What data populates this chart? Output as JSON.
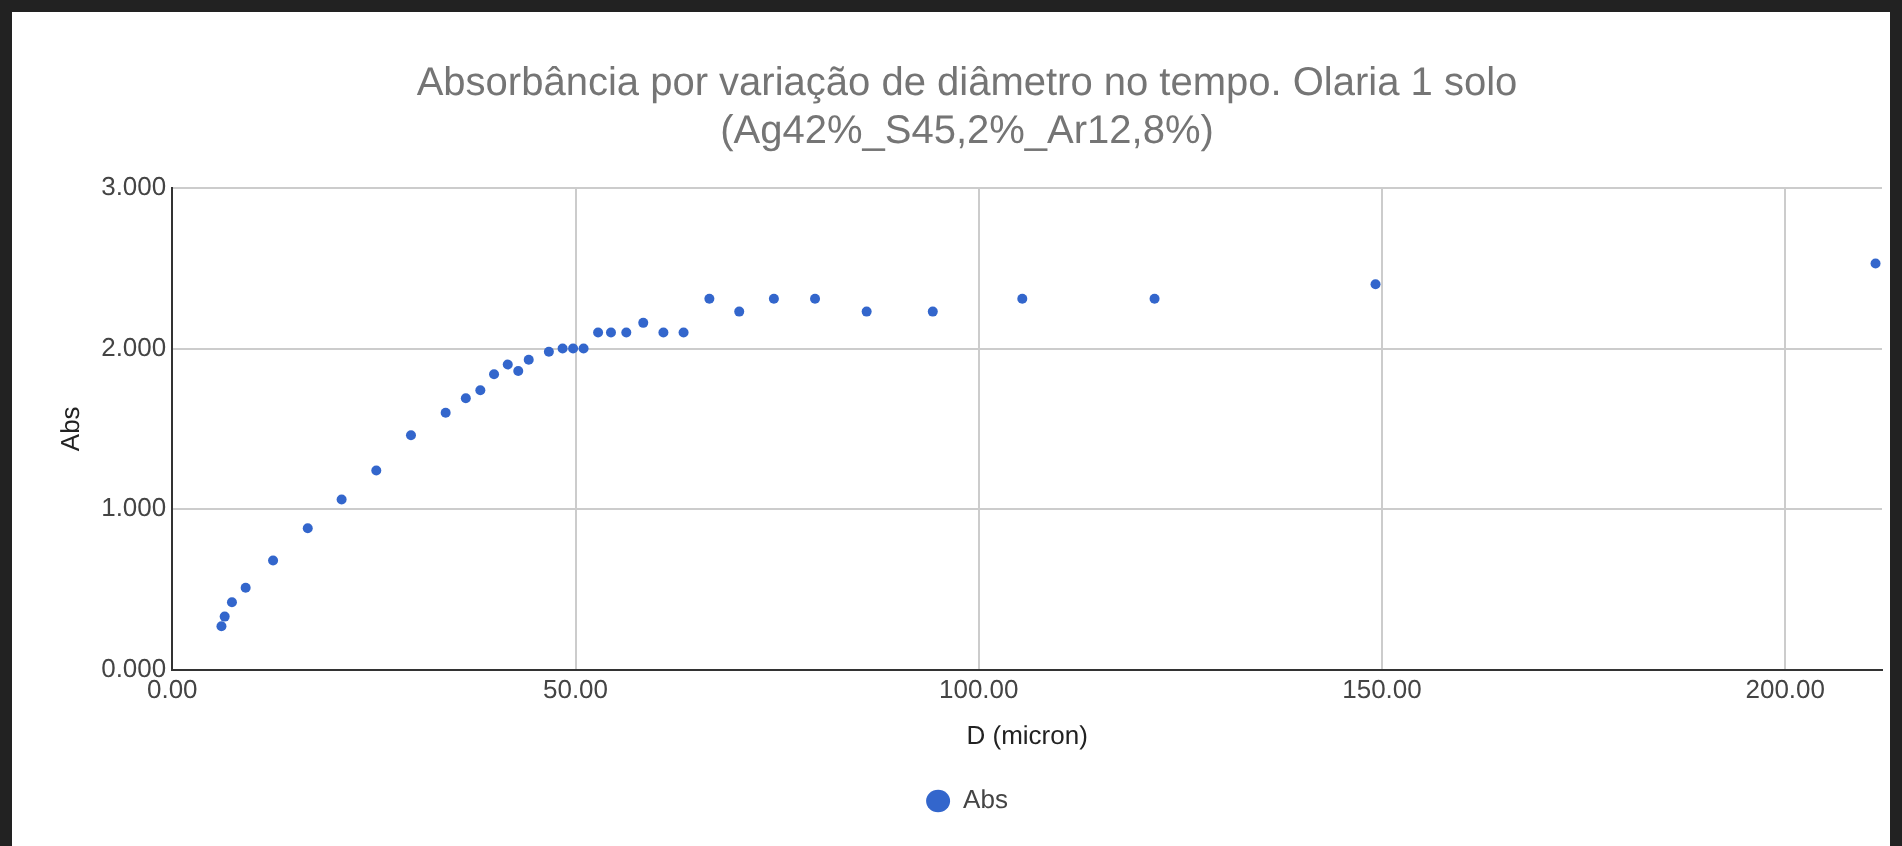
{
  "chart_data": {
    "type": "scatter",
    "title": "Absorbância por variação de diâmetro no tempo. Olaria 1 solo\n(Ag42%_S45,2%_Ar12,8%)",
    "xlabel": "D (micron)",
    "ylabel": "Abs",
    "series": [
      {
        "name": "Abs",
        "color": "#3366cc",
        "x": [
          6.1,
          6.5,
          7.4,
          9.1,
          12.5,
          16.8,
          21.0,
          25.3,
          29.6,
          33.9,
          36.4,
          38.2,
          39.9,
          41.6,
          42.9,
          44.2,
          46.7,
          48.4,
          49.7,
          51.0,
          52.8,
          54.4,
          56.3,
          58.4,
          60.9,
          63.4,
          66.6,
          70.3,
          74.6,
          79.7,
          86.1,
          94.3,
          105.4,
          121.8,
          149.2,
          211.2
        ],
        "values": [
          0.27,
          0.33,
          0.42,
          0.51,
          0.68,
          0.88,
          1.06,
          1.24,
          1.46,
          1.6,
          1.69,
          1.74,
          1.84,
          1.9,
          1.86,
          1.93,
          1.98,
          2.0,
          2.0,
          2.0,
          2.1,
          2.1,
          2.1,
          2.16,
          2.1,
          2.1,
          2.31,
          2.23,
          2.31,
          2.31,
          2.23,
          2.23,
          2.31,
          2.31,
          2.4,
          2.53
        ]
      }
    ],
    "xlim": [
      0,
      212
    ],
    "xticks": [
      {
        "value": 0,
        "label": "0.00"
      },
      {
        "value": 50,
        "label": "50.00"
      },
      {
        "value": 100,
        "label": "100.00"
      },
      {
        "value": 150,
        "label": "150.00"
      },
      {
        "value": 200,
        "label": "200.00"
      }
    ],
    "ylim": [
      0,
      3
    ],
    "yticks": [
      {
        "value": 0,
        "label": "0.000"
      },
      {
        "value": 1,
        "label": "1.000"
      },
      {
        "value": 2,
        "label": "2.000"
      },
      {
        "value": 3,
        "label": "3.000"
      }
    ],
    "grid": true,
    "legend": "bottom",
    "marker": "circle"
  }
}
